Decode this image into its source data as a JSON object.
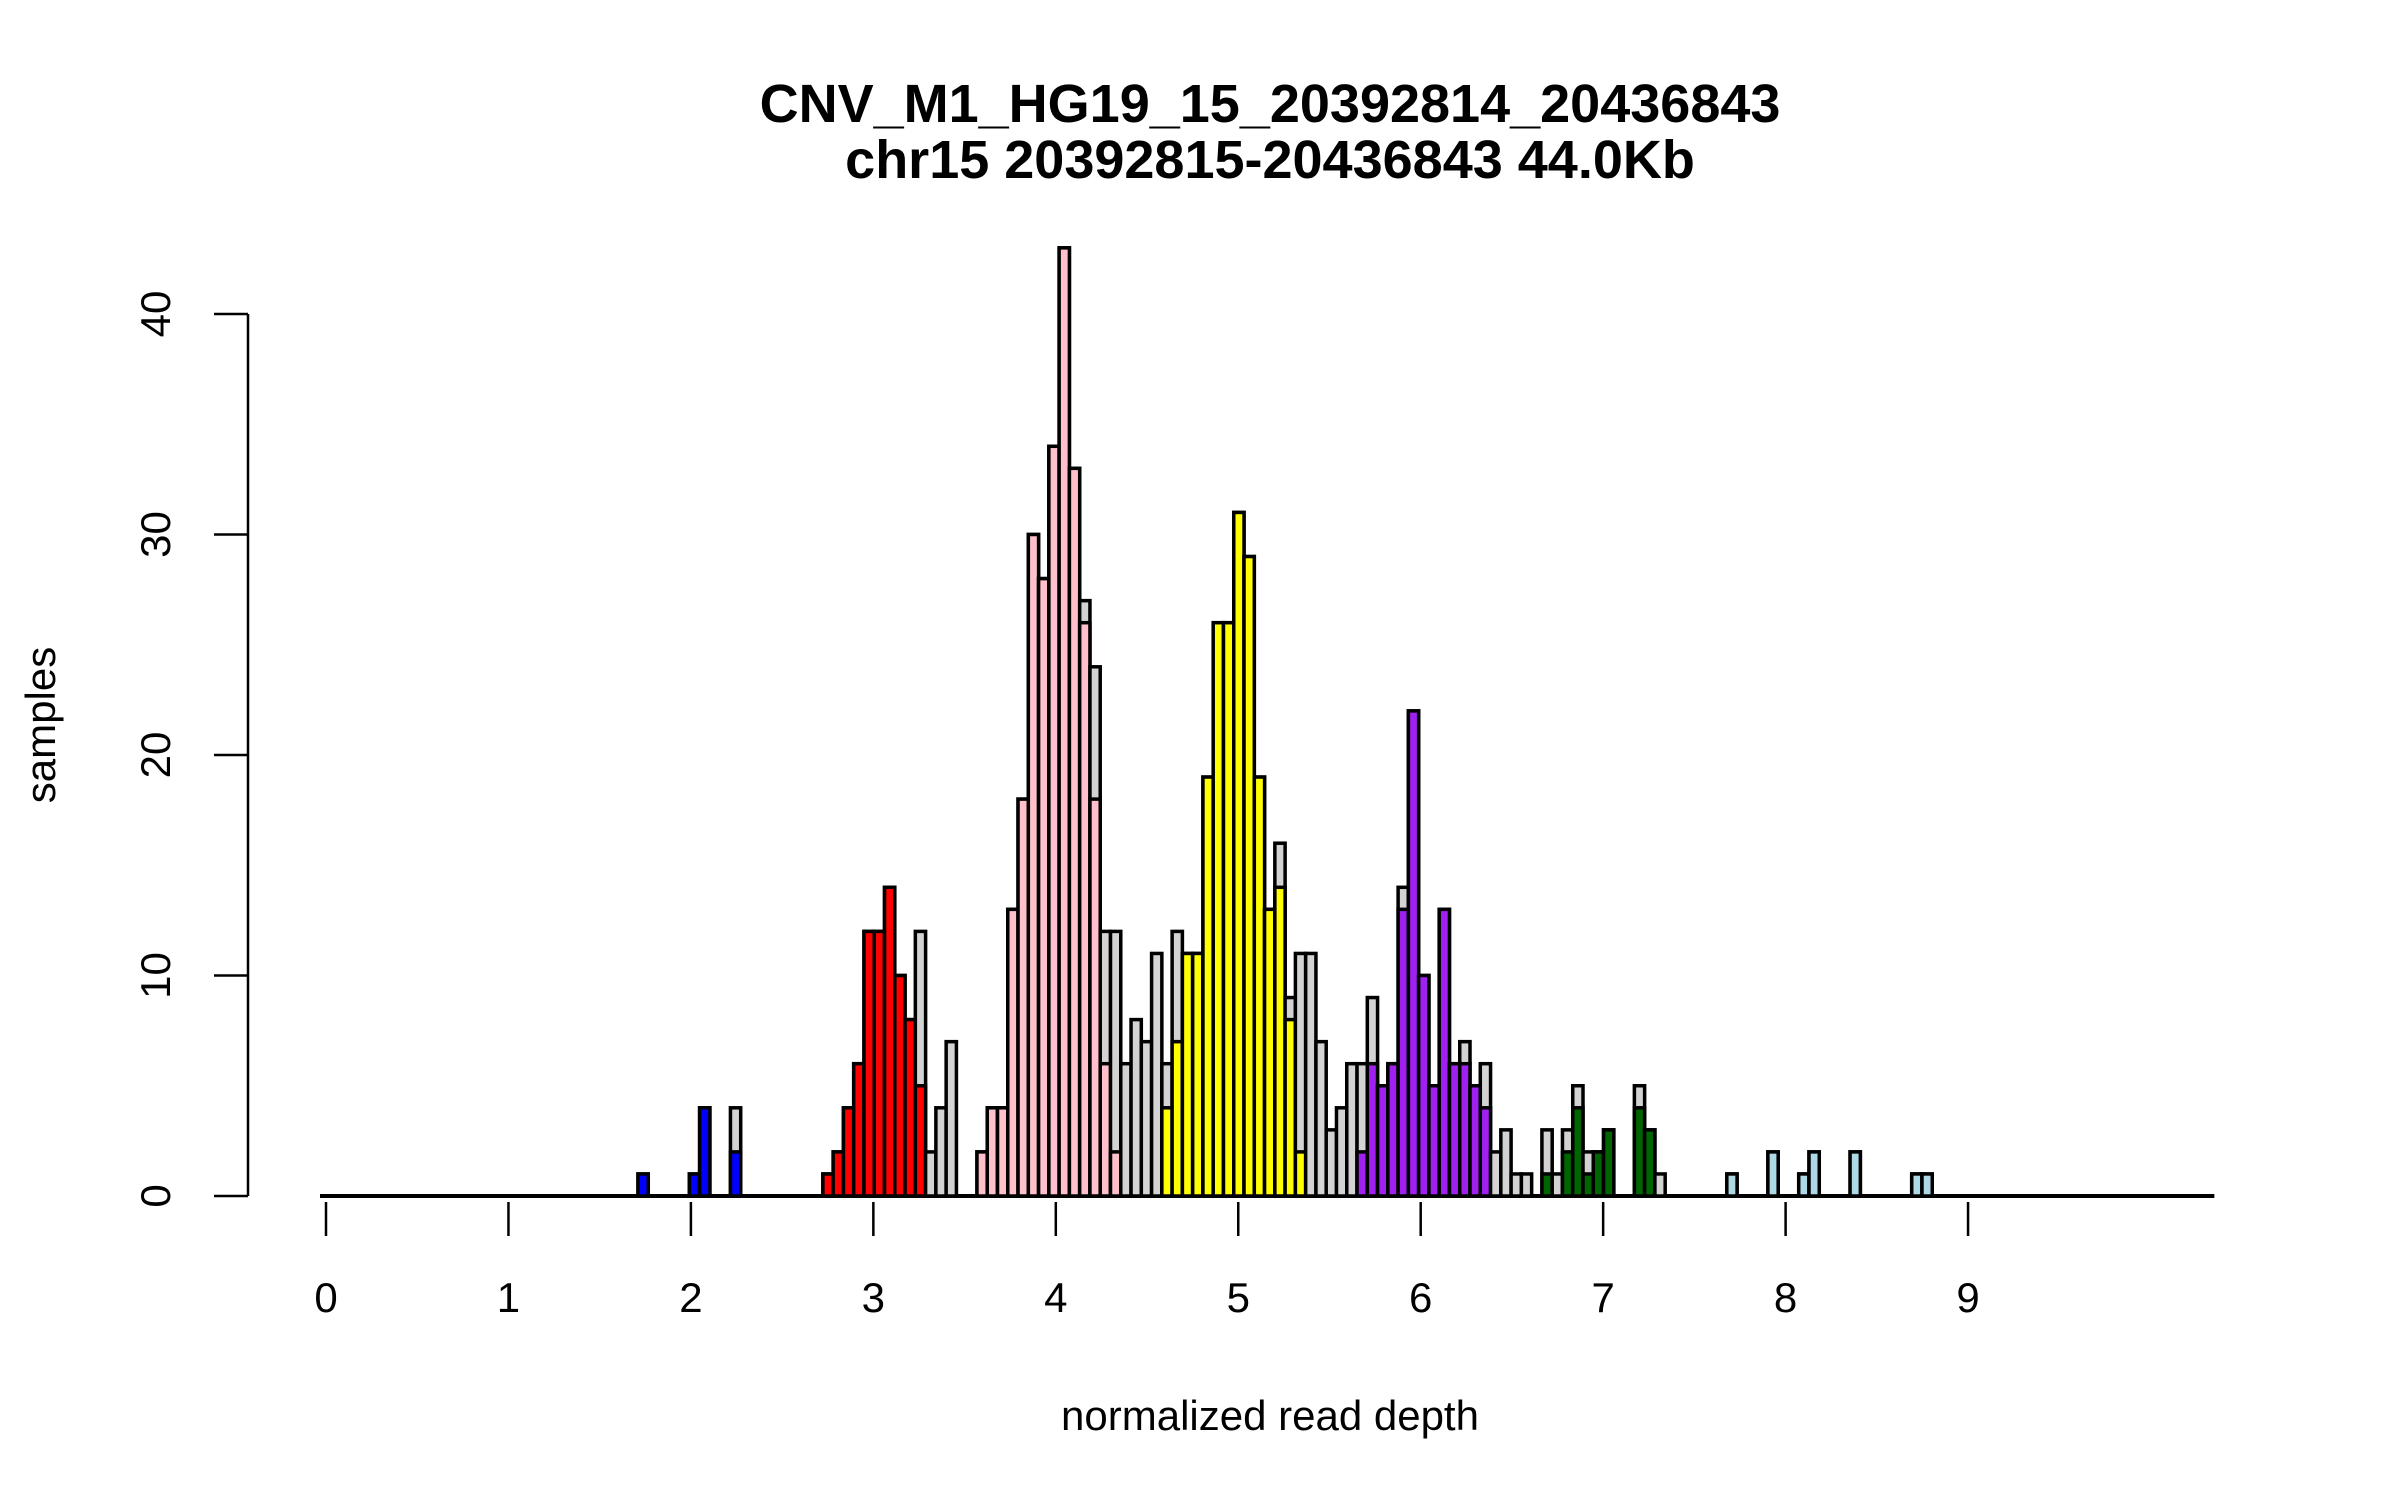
{
  "chart_data": {
    "type": "bar",
    "subtype": "overlaid histogram",
    "title": "CNV_M1_HG19_15_20392814_20436843",
    "subtitle": "chr15 20392815-20436843 44.0Kb",
    "xlabel": "normalized read depth",
    "ylabel": "samples",
    "xlim": [
      0,
      10.35
    ],
    "ylim": [
      0,
      43
    ],
    "x_ticks": [
      "0",
      "1",
      "2",
      "3",
      "4",
      "5",
      "6",
      "7",
      "8",
      "9"
    ],
    "y_ticks": [
      "0",
      "10",
      "20",
      "30",
      "40"
    ],
    "bin_start": 0.021,
    "bin_width": 0.0563,
    "grid": false,
    "colors": {
      "total": "#D3D3D3",
      "blue": "#0000FF",
      "red": "#FF0000",
      "pink": "#FFC0CB",
      "yellow": "#FFFF00",
      "purple": "#A020F0",
      "green": "#006400",
      "lightblue": "#ADD8E6"
    },
    "bins": [
      {
        "bin": 30,
        "total": 1,
        "count": 1,
        "group": "blue"
      },
      {
        "bin": 35,
        "total": 1,
        "count": 1,
        "group": "blue"
      },
      {
        "bin": 36,
        "total": 4,
        "count": 4,
        "group": "blue"
      },
      {
        "bin": 39,
        "total": 4,
        "count": 2,
        "group": "blue"
      },
      {
        "bin": 48,
        "total": 1,
        "count": 1,
        "group": "red"
      },
      {
        "bin": 49,
        "total": 2,
        "count": 2,
        "group": "red"
      },
      {
        "bin": 50,
        "total": 4,
        "count": 4,
        "group": "red"
      },
      {
        "bin": 51,
        "total": 6,
        "count": 6,
        "group": "red"
      },
      {
        "bin": 52,
        "total": 12,
        "count": 12,
        "group": "red"
      },
      {
        "bin": 53,
        "total": 12,
        "count": 12,
        "group": "red"
      },
      {
        "bin": 54,
        "total": 14,
        "count": 14,
        "group": "red"
      },
      {
        "bin": 55,
        "total": 10,
        "count": 10,
        "group": "red"
      },
      {
        "bin": 56,
        "total": 8,
        "count": 8,
        "group": "red"
      },
      {
        "bin": 57,
        "total": 12,
        "count": 5,
        "group": "red"
      },
      {
        "bin": 58,
        "total": 2,
        "count": 0,
        "group": null
      },
      {
        "bin": 59,
        "total": 4,
        "count": 0,
        "group": null
      },
      {
        "bin": 60,
        "total": 7,
        "count": 0,
        "group": null
      },
      {
        "bin": 63,
        "total": 2,
        "count": 2,
        "group": "pink"
      },
      {
        "bin": 64,
        "total": 4,
        "count": 4,
        "group": "pink"
      },
      {
        "bin": 65,
        "total": 4,
        "count": 4,
        "group": "pink"
      },
      {
        "bin": 66,
        "total": 13,
        "count": 13,
        "group": "pink"
      },
      {
        "bin": 67,
        "total": 18,
        "count": 18,
        "group": "pink"
      },
      {
        "bin": 68,
        "total": 30,
        "count": 30,
        "group": "pink"
      },
      {
        "bin": 69,
        "total": 28,
        "count": 28,
        "group": "pink"
      },
      {
        "bin": 70,
        "total": 34,
        "count": 34,
        "group": "pink"
      },
      {
        "bin": 71,
        "total": 43,
        "count": 43,
        "group": "pink"
      },
      {
        "bin": 72,
        "total": 33,
        "count": 33,
        "group": "pink"
      },
      {
        "bin": 73,
        "total": 27,
        "count": 26,
        "group": "pink"
      },
      {
        "bin": 74,
        "total": 24,
        "count": 18,
        "group": "pink"
      },
      {
        "bin": 75,
        "total": 12,
        "count": 6,
        "group": "pink"
      },
      {
        "bin": 76,
        "total": 12,
        "count": 2,
        "group": "pink"
      },
      {
        "bin": 77,
        "total": 6,
        "count": 0,
        "group": null
      },
      {
        "bin": 78,
        "total": 8,
        "count": 0,
        "group": null
      },
      {
        "bin": 79,
        "total": 7,
        "count": 0,
        "group": null
      },
      {
        "bin": 80,
        "total": 11,
        "count": 0,
        "group": null
      },
      {
        "bin": 81,
        "total": 6,
        "count": 4,
        "group": "yellow"
      },
      {
        "bin": 82,
        "total": 12,
        "count": 7,
        "group": "yellow"
      },
      {
        "bin": 83,
        "total": 11,
        "count": 11,
        "group": "yellow"
      },
      {
        "bin": 84,
        "total": 11,
        "count": 11,
        "group": "yellow"
      },
      {
        "bin": 85,
        "total": 19,
        "count": 19,
        "group": "yellow"
      },
      {
        "bin": 86,
        "total": 26,
        "count": 26,
        "group": "yellow"
      },
      {
        "bin": 87,
        "total": 26,
        "count": 26,
        "group": "yellow"
      },
      {
        "bin": 88,
        "total": 31,
        "count": 31,
        "group": "yellow"
      },
      {
        "bin": 89,
        "total": 29,
        "count": 29,
        "group": "yellow"
      },
      {
        "bin": 90,
        "total": 19,
        "count": 19,
        "group": "yellow"
      },
      {
        "bin": 91,
        "total": 13,
        "count": 13,
        "group": "yellow"
      },
      {
        "bin": 92,
        "total": 16,
        "count": 14,
        "group": "yellow"
      },
      {
        "bin": 93,
        "total": 9,
        "count": 8,
        "group": "yellow"
      },
      {
        "bin": 94,
        "total": 11,
        "count": 2,
        "group": "yellow"
      },
      {
        "bin": 95,
        "total": 11,
        "count": 0,
        "group": null
      },
      {
        "bin": 96,
        "total": 7,
        "count": 0,
        "group": null
      },
      {
        "bin": 97,
        "total": 3,
        "count": 0,
        "group": null
      },
      {
        "bin": 98,
        "total": 4,
        "count": 0,
        "group": null
      },
      {
        "bin": 99,
        "total": 6,
        "count": 0,
        "group": null
      },
      {
        "bin": 100,
        "total": 6,
        "count": 2,
        "group": "purple"
      },
      {
        "bin": 101,
        "total": 9,
        "count": 6,
        "group": "purple"
      },
      {
        "bin": 102,
        "total": 5,
        "count": 5,
        "group": "purple"
      },
      {
        "bin": 103,
        "total": 6,
        "count": 6,
        "group": "purple"
      },
      {
        "bin": 104,
        "total": 14,
        "count": 13,
        "group": "purple"
      },
      {
        "bin": 105,
        "total": 22,
        "count": 22,
        "group": "purple"
      },
      {
        "bin": 106,
        "total": 10,
        "count": 10,
        "group": "purple"
      },
      {
        "bin": 107,
        "total": 5,
        "count": 5,
        "group": "purple"
      },
      {
        "bin": 108,
        "total": 13,
        "count": 13,
        "group": "purple"
      },
      {
        "bin": 109,
        "total": 6,
        "count": 6,
        "group": "purple"
      },
      {
        "bin": 110,
        "total": 7,
        "count": 6,
        "group": "purple"
      },
      {
        "bin": 111,
        "total": 5,
        "count": 5,
        "group": "purple"
      },
      {
        "bin": 112,
        "total": 6,
        "count": 4,
        "group": "purple"
      },
      {
        "bin": 113,
        "total": 2,
        "count": 0,
        "group": null
      },
      {
        "bin": 114,
        "total": 3,
        "count": 0,
        "group": null
      },
      {
        "bin": 115,
        "total": 1,
        "count": 0,
        "group": null
      },
      {
        "bin": 116,
        "total": 1,
        "count": 0,
        "group": null
      },
      {
        "bin": 118,
        "total": 3,
        "count": 1,
        "group": "green"
      },
      {
        "bin": 119,
        "total": 1,
        "count": 0,
        "group": null
      },
      {
        "bin": 120,
        "total": 3,
        "count": 2,
        "group": "green"
      },
      {
        "bin": 121,
        "total": 5,
        "count": 4,
        "group": "green"
      },
      {
        "bin": 122,
        "total": 2,
        "count": 1,
        "group": "green"
      },
      {
        "bin": 123,
        "total": 2,
        "count": 2,
        "group": "green"
      },
      {
        "bin": 124,
        "total": 3,
        "count": 3,
        "group": "green"
      },
      {
        "bin": 127,
        "total": 5,
        "count": 4,
        "group": "green"
      },
      {
        "bin": 128,
        "total": 3,
        "count": 3,
        "group": "green"
      },
      {
        "bin": 129,
        "total": 1,
        "count": 0,
        "group": null
      },
      {
        "bin": 136,
        "total": 1,
        "count": 1,
        "group": "lightblue"
      },
      {
        "bin": 140,
        "total": 2,
        "count": 2,
        "group": "lightblue"
      },
      {
        "bin": 143,
        "total": 1,
        "count": 1,
        "group": "lightblue"
      },
      {
        "bin": 144,
        "total": 2,
        "count": 2,
        "group": "lightblue"
      },
      {
        "bin": 148,
        "total": 2,
        "count": 2,
        "group": "lightblue"
      },
      {
        "bin": 154,
        "total": 1,
        "count": 1,
        "group": "lightblue"
      },
      {
        "bin": 155,
        "total": 1,
        "count": 1,
        "group": "lightblue"
      }
    ]
  }
}
